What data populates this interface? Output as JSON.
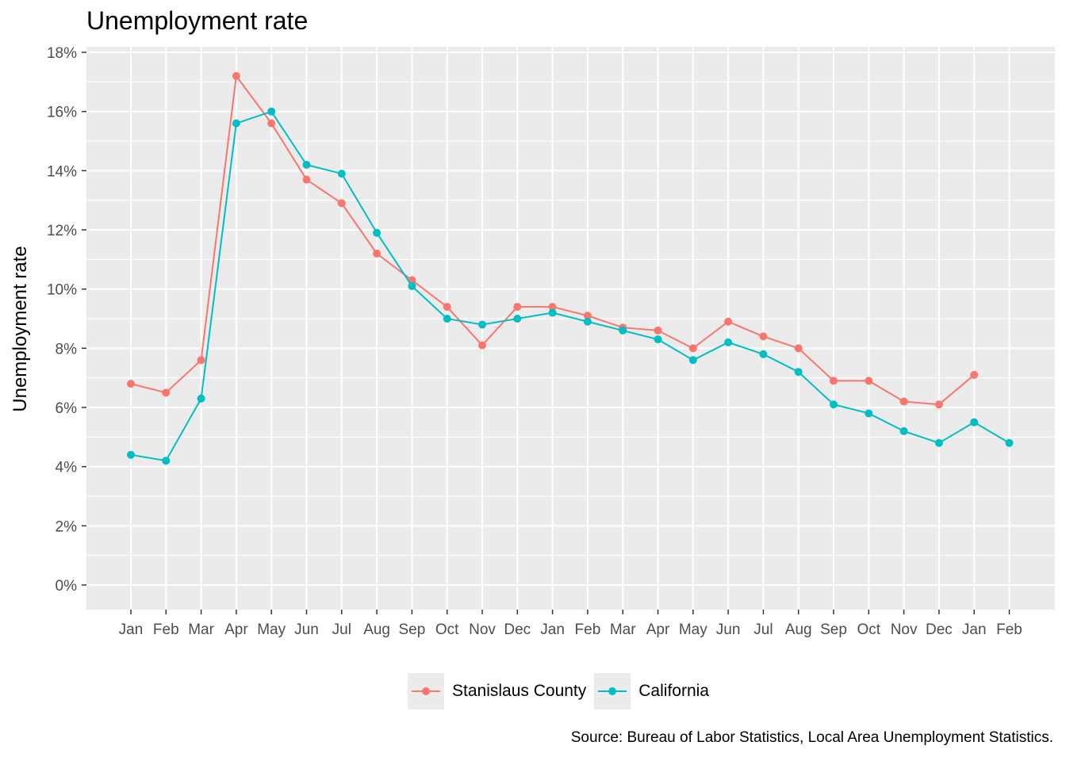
{
  "chart_data": {
    "type": "line",
    "title": "Unemployment rate",
    "xlabel": "",
    "ylabel": "Unemployment rate",
    "caption": "Source: Bureau of Labor Statistics, Local Area Unemployment Statistics.",
    "categories": [
      "Jan",
      "Feb",
      "Mar",
      "Apr",
      "May",
      "Jun",
      "Jul",
      "Aug",
      "Sep",
      "Oct",
      "Nov",
      "Dec",
      "Jan",
      "Feb",
      "Mar",
      "Apr",
      "May",
      "Jun",
      "Jul",
      "Aug",
      "Sep",
      "Oct",
      "Nov",
      "Dec",
      "Jan",
      "Feb"
    ],
    "ylim": [
      -0.8,
      18
    ],
    "yticks": [
      0,
      2,
      4,
      6,
      8,
      10,
      12,
      14,
      16,
      18
    ],
    "ytick_labels": [
      "0%",
      "2%",
      "4%",
      "6%",
      "8%",
      "10%",
      "12%",
      "14%",
      "16%",
      "18%"
    ],
    "grid": true,
    "legend_position": "bottom",
    "series": [
      {
        "name": "Stanislaus County",
        "color": "#F8766D",
        "values": [
          6.8,
          6.5,
          7.6,
          17.2,
          15.6,
          13.7,
          12.9,
          11.2,
          10.3,
          9.4,
          8.1,
          9.4,
          9.4,
          9.1,
          8.7,
          8.6,
          8.0,
          8.9,
          8.4,
          8.0,
          6.9,
          6.9,
          6.2,
          6.1,
          7.1,
          null
        ]
      },
      {
        "name": "California",
        "color": "#00BFC4",
        "values": [
          4.4,
          4.2,
          6.3,
          15.6,
          16.0,
          14.2,
          13.9,
          11.9,
          10.1,
          9.0,
          8.8,
          9.0,
          9.2,
          8.9,
          8.6,
          8.3,
          7.6,
          8.2,
          7.8,
          7.2,
          6.1,
          5.8,
          5.2,
          4.8,
          5.5,
          4.8
        ]
      }
    ]
  },
  "colors": {
    "panel_background": "#EBEBEB",
    "grid": "#FFFFFF"
  }
}
